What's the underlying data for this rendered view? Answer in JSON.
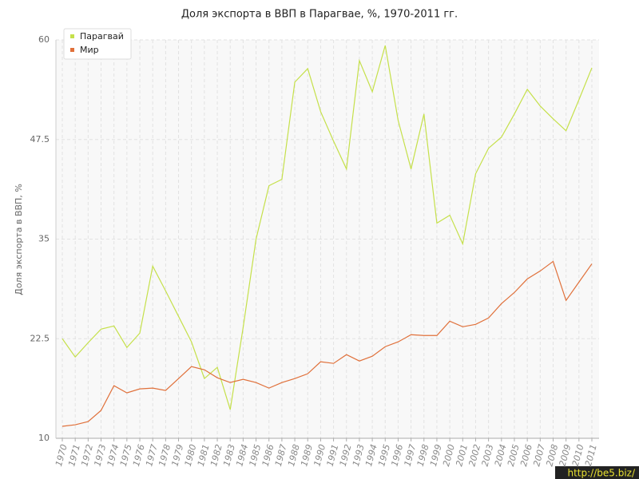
{
  "chart_data": {
    "type": "line",
    "title": "Доля экспорта в ВВП в Парагвае, %, 1970-2011 гг.",
    "y_label": "Доля экспорта в ВВП, %",
    "categories": [
      "1970",
      "1971",
      "1972",
      "1973",
      "1974",
      "1975",
      "1976",
      "1977",
      "1978",
      "1979",
      "1980",
      "1981",
      "1982",
      "1983",
      "1984",
      "1985",
      "1986",
      "1987",
      "1988",
      "1989",
      "1990",
      "1991",
      "1992",
      "1993",
      "1994",
      "1995",
      "1996",
      "1997",
      "1998",
      "1999",
      "2000",
      "2001",
      "2002",
      "2003",
      "2004",
      "2005",
      "2006",
      "2007",
      "2008",
      "2009",
      "2010",
      "2011"
    ],
    "series": [
      {
        "name": "Парагвай",
        "color": "#c5e04a",
        "values": [
          22.5,
          20.2,
          22.0,
          23.7,
          24.1,
          21.4,
          23.2,
          31.6,
          28.5,
          25.3,
          22.1,
          17.5,
          18.9,
          13.6,
          23.9,
          35.0,
          41.7,
          42.5,
          54.7,
          56.4,
          51.0,
          47.3,
          43.8,
          57.4,
          53.5,
          59.3,
          49.9,
          43.8,
          50.7,
          37.0,
          38.0,
          34.4,
          43.2,
          46.4,
          47.8,
          50.7,
          53.8,
          51.7,
          50.1,
          48.6,
          52.5,
          56.5
        ]
      },
      {
        "name": "Мир",
        "color": "#e0703a",
        "values": [
          11.5,
          11.7,
          12.1,
          13.5,
          16.6,
          15.7,
          16.2,
          16.3,
          16.0,
          17.5,
          19.0,
          18.6,
          17.6,
          17.0,
          17.4,
          17.0,
          16.3,
          17.0,
          17.5,
          18.1,
          19.6,
          19.4,
          20.5,
          19.7,
          20.3,
          21.5,
          22.1,
          23.0,
          22.9,
          22.9,
          24.7,
          24.0,
          24.3,
          25.1,
          26.9,
          28.3,
          30.0,
          31.0,
          32.2,
          27.3,
          29.6,
          31.9
        ]
      }
    ],
    "ylim": [
      10,
      60
    ],
    "yticks": [
      10,
      22.5,
      35,
      47.5,
      60
    ],
    "grid": true,
    "legend": "top-left",
    "watermark": "http://be5.biz/"
  }
}
